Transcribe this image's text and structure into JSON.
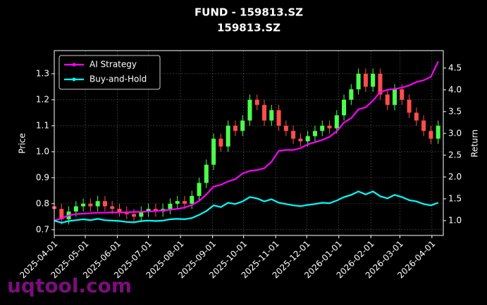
{
  "chart_data": {
    "type": "candlestick",
    "title": "FUND - 159813.SZ",
    "subtitle": "159813.SZ",
    "ylabel": "Price",
    "y2label": "Return",
    "watermark": "uqtool.com",
    "x": [
      "2025-04-01",
      "2025-04-08",
      "2025-04-15",
      "2025-04-22",
      "2025-04-29",
      "2025-05-06",
      "2025-05-13",
      "2025-05-20",
      "2025-05-27",
      "2025-06-03",
      "2025-06-10",
      "2025-06-17",
      "2025-06-24",
      "2025-07-01",
      "2025-07-08",
      "2025-07-15",
      "2025-07-22",
      "2025-07-29",
      "2025-08-05",
      "2025-08-12",
      "2025-08-19",
      "2025-08-26",
      "2025-09-02",
      "2025-09-09",
      "2025-09-16",
      "2025-09-23",
      "2025-09-30",
      "2025-10-07",
      "2025-10-14",
      "2025-10-21",
      "2025-10-28",
      "2025-11-04",
      "2025-11-11",
      "2025-11-18",
      "2025-11-25",
      "2025-12-02",
      "2025-12-09",
      "2025-12-16",
      "2025-12-23",
      "2025-12-30",
      "2026-01-06",
      "2026-01-13",
      "2026-01-20",
      "2026-01-27",
      "2026-02-03",
      "2026-02-10",
      "2026-02-17",
      "2026-02-24",
      "2026-03-03",
      "2026-03-10",
      "2026-03-17",
      "2026-03-24",
      "2026-03-31",
      "2026-04-07"
    ],
    "open": [
      0.79,
      0.78,
      0.74,
      0.77,
      0.79,
      0.8,
      0.79,
      0.81,
      0.79,
      0.78,
      0.77,
      0.76,
      0.75,
      0.77,
      0.78,
      0.77,
      0.78,
      0.8,
      0.81,
      0.8,
      0.83,
      0.88,
      0.95,
      1.05,
      1.02,
      1.1,
      1.08,
      1.12,
      1.2,
      1.18,
      1.12,
      1.16,
      1.1,
      1.08,
      1.05,
      1.04,
      1.06,
      1.08,
      1.1,
      1.09,
      1.14,
      1.2,
      1.24,
      1.3,
      1.25,
      1.3,
      1.22,
      1.18,
      1.24,
      1.2,
      1.15,
      1.12,
      1.08,
      1.05
    ],
    "high": [
      0.81,
      0.8,
      0.79,
      0.81,
      0.82,
      0.82,
      0.83,
      0.83,
      0.81,
      0.8,
      0.79,
      0.78,
      0.79,
      0.8,
      0.8,
      0.8,
      0.82,
      0.83,
      0.83,
      0.85,
      0.9,
      0.97,
      1.07,
      1.07,
      1.12,
      1.12,
      1.14,
      1.22,
      1.22,
      1.2,
      1.18,
      1.18,
      1.12,
      1.1,
      1.07,
      1.08,
      1.1,
      1.12,
      1.12,
      1.16,
      1.22,
      1.26,
      1.32,
      1.32,
      1.32,
      1.32,
      1.24,
      1.26,
      1.26,
      1.22,
      1.17,
      1.14,
      1.1,
      1.12
    ],
    "low": [
      0.76,
      0.72,
      0.72,
      0.75,
      0.77,
      0.77,
      0.77,
      0.77,
      0.76,
      0.75,
      0.74,
      0.73,
      0.73,
      0.75,
      0.75,
      0.75,
      0.76,
      0.78,
      0.78,
      0.78,
      0.81,
      0.86,
      0.93,
      1.0,
      1.0,
      1.06,
      1.06,
      1.1,
      1.16,
      1.1,
      1.1,
      1.08,
      1.06,
      1.03,
      1.02,
      1.02,
      1.04,
      1.06,
      1.07,
      1.07,
      1.12,
      1.18,
      1.22,
      1.23,
      1.23,
      1.2,
      1.16,
      1.16,
      1.18,
      1.13,
      1.1,
      1.06,
      1.03,
      1.03
    ],
    "close": [
      0.78,
      0.74,
      0.77,
      0.79,
      0.8,
      0.79,
      0.81,
      0.79,
      0.78,
      0.77,
      0.76,
      0.75,
      0.77,
      0.78,
      0.77,
      0.78,
      0.8,
      0.81,
      0.8,
      0.83,
      0.88,
      0.95,
      1.05,
      1.02,
      1.1,
      1.08,
      1.12,
      1.2,
      1.18,
      1.12,
      1.16,
      1.1,
      1.08,
      1.05,
      1.04,
      1.06,
      1.08,
      1.1,
      1.09,
      1.14,
      1.2,
      1.24,
      1.3,
      1.25,
      1.3,
      1.22,
      1.18,
      1.24,
      1.2,
      1.15,
      1.12,
      1.08,
      1.05,
      1.1
    ],
    "up_color": "#4dff4d",
    "down_color": "#ff4d4d",
    "series": [
      {
        "name": "AI Strategy",
        "color": "#ff00ff",
        "axis": "y2",
        "values": [
          1.0,
          1.05,
          1.12,
          1.15,
          1.16,
          1.17,
          1.18,
          1.18,
          1.19,
          1.19,
          1.19,
          1.2,
          1.2,
          1.21,
          1.22,
          1.23,
          1.25,
          1.27,
          1.3,
          1.36,
          1.45,
          1.6,
          1.78,
          1.82,
          1.9,
          1.95,
          2.08,
          2.14,
          2.16,
          2.2,
          2.35,
          2.6,
          2.62,
          2.62,
          2.66,
          2.75,
          2.8,
          2.85,
          2.92,
          3.05,
          3.25,
          3.35,
          3.55,
          3.6,
          3.75,
          3.95,
          4.0,
          4.02,
          4.05,
          4.1,
          4.18,
          4.22,
          4.3,
          4.65
        ]
      },
      {
        "name": "Buy-and-Hold",
        "color": "#00ffff",
        "axis": "y2",
        "values": [
          1.0,
          0.95,
          0.99,
          1.01,
          1.03,
          1.01,
          1.04,
          1.01,
          1.0,
          0.99,
          0.97,
          0.96,
          0.99,
          1.0,
          0.99,
          1.0,
          1.03,
          1.04,
          1.03,
          1.06,
          1.13,
          1.22,
          1.35,
          1.31,
          1.41,
          1.38,
          1.44,
          1.54,
          1.51,
          1.44,
          1.49,
          1.41,
          1.38,
          1.35,
          1.33,
          1.36,
          1.38,
          1.41,
          1.4,
          1.46,
          1.54,
          1.59,
          1.67,
          1.6,
          1.67,
          1.56,
          1.51,
          1.59,
          1.54,
          1.47,
          1.44,
          1.38,
          1.35,
          1.41
        ]
      }
    ],
    "xlim": [
      "2025-04-01",
      "2026-04-12"
    ],
    "xticks": [
      "2025-04-01",
      "2025-05-01",
      "2025-06-01",
      "2025-07-01",
      "2025-08-01",
      "2025-09-01",
      "2025-10-01",
      "2025-11-01",
      "2025-12-01",
      "2026-01-01",
      "2026-02-01",
      "2026-03-01",
      "2026-04-01"
    ],
    "ylim": [
      0.678,
      1.389
    ],
    "yticks": [
      0.7,
      0.8,
      0.9,
      {
        "value": 1,
        "label": "1.0"
      },
      1.1,
      1.2,
      1.3
    ],
    "y2lim": [
      0.66,
      4.9
    ],
    "y2ticks": [
      {
        "value": 1,
        "label": "1.0"
      },
      1.5,
      {
        "value": 2,
        "label": "2.0"
      },
      2.5,
      {
        "value": 3,
        "label": "3.0"
      },
      3.5,
      {
        "value": 4,
        "label": "4.0"
      },
      4.5
    ],
    "grid": true,
    "legend": "upper left"
  }
}
